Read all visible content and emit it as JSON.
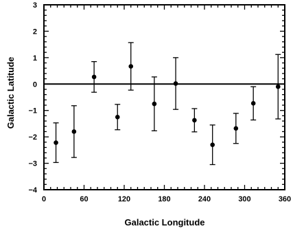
{
  "chart_data": {
    "type": "scatter",
    "title": "",
    "xlabel": "Galactic Longitude",
    "ylabel": "Galactic Latitude",
    "xlim": [
      0,
      360
    ],
    "ylim": [
      -4,
      3
    ],
    "x_ticks": [
      0,
      60,
      120,
      180,
      240,
      300,
      360
    ],
    "y_ticks": [
      -4,
      -3,
      -2,
      -1,
      0,
      1,
      2,
      3
    ],
    "x_minor_step": 10,
    "y_minor_step": 0.2,
    "reference_line_y": 0,
    "grid": false,
    "legend": "none",
    "series": [
      {
        "points": [
          {
            "x": 18,
            "y": -2.22,
            "err": 0.75
          },
          {
            "x": 45,
            "y": -1.8,
            "err": 0.98
          },
          {
            "x": 75,
            "y": 0.27,
            "err": 0.58
          },
          {
            "x": 110,
            "y": -1.25,
            "err": 0.48
          },
          {
            "x": 130,
            "y": 0.67,
            "err": 0.9
          },
          {
            "x": 165,
            "y": -0.75,
            "err": 1.02
          },
          {
            "x": 197,
            "y": 0.02,
            "err": 0.98
          },
          {
            "x": 225,
            "y": -1.37,
            "err": 0.44
          },
          {
            "x": 252,
            "y": -2.3,
            "err": 0.75
          },
          {
            "x": 287,
            "y": -1.68,
            "err": 0.57
          },
          {
            "x": 313,
            "y": -0.73,
            "err": 0.63
          },
          {
            "x": 350,
            "y": -0.1,
            "err": 1.22
          }
        ]
      }
    ]
  }
}
